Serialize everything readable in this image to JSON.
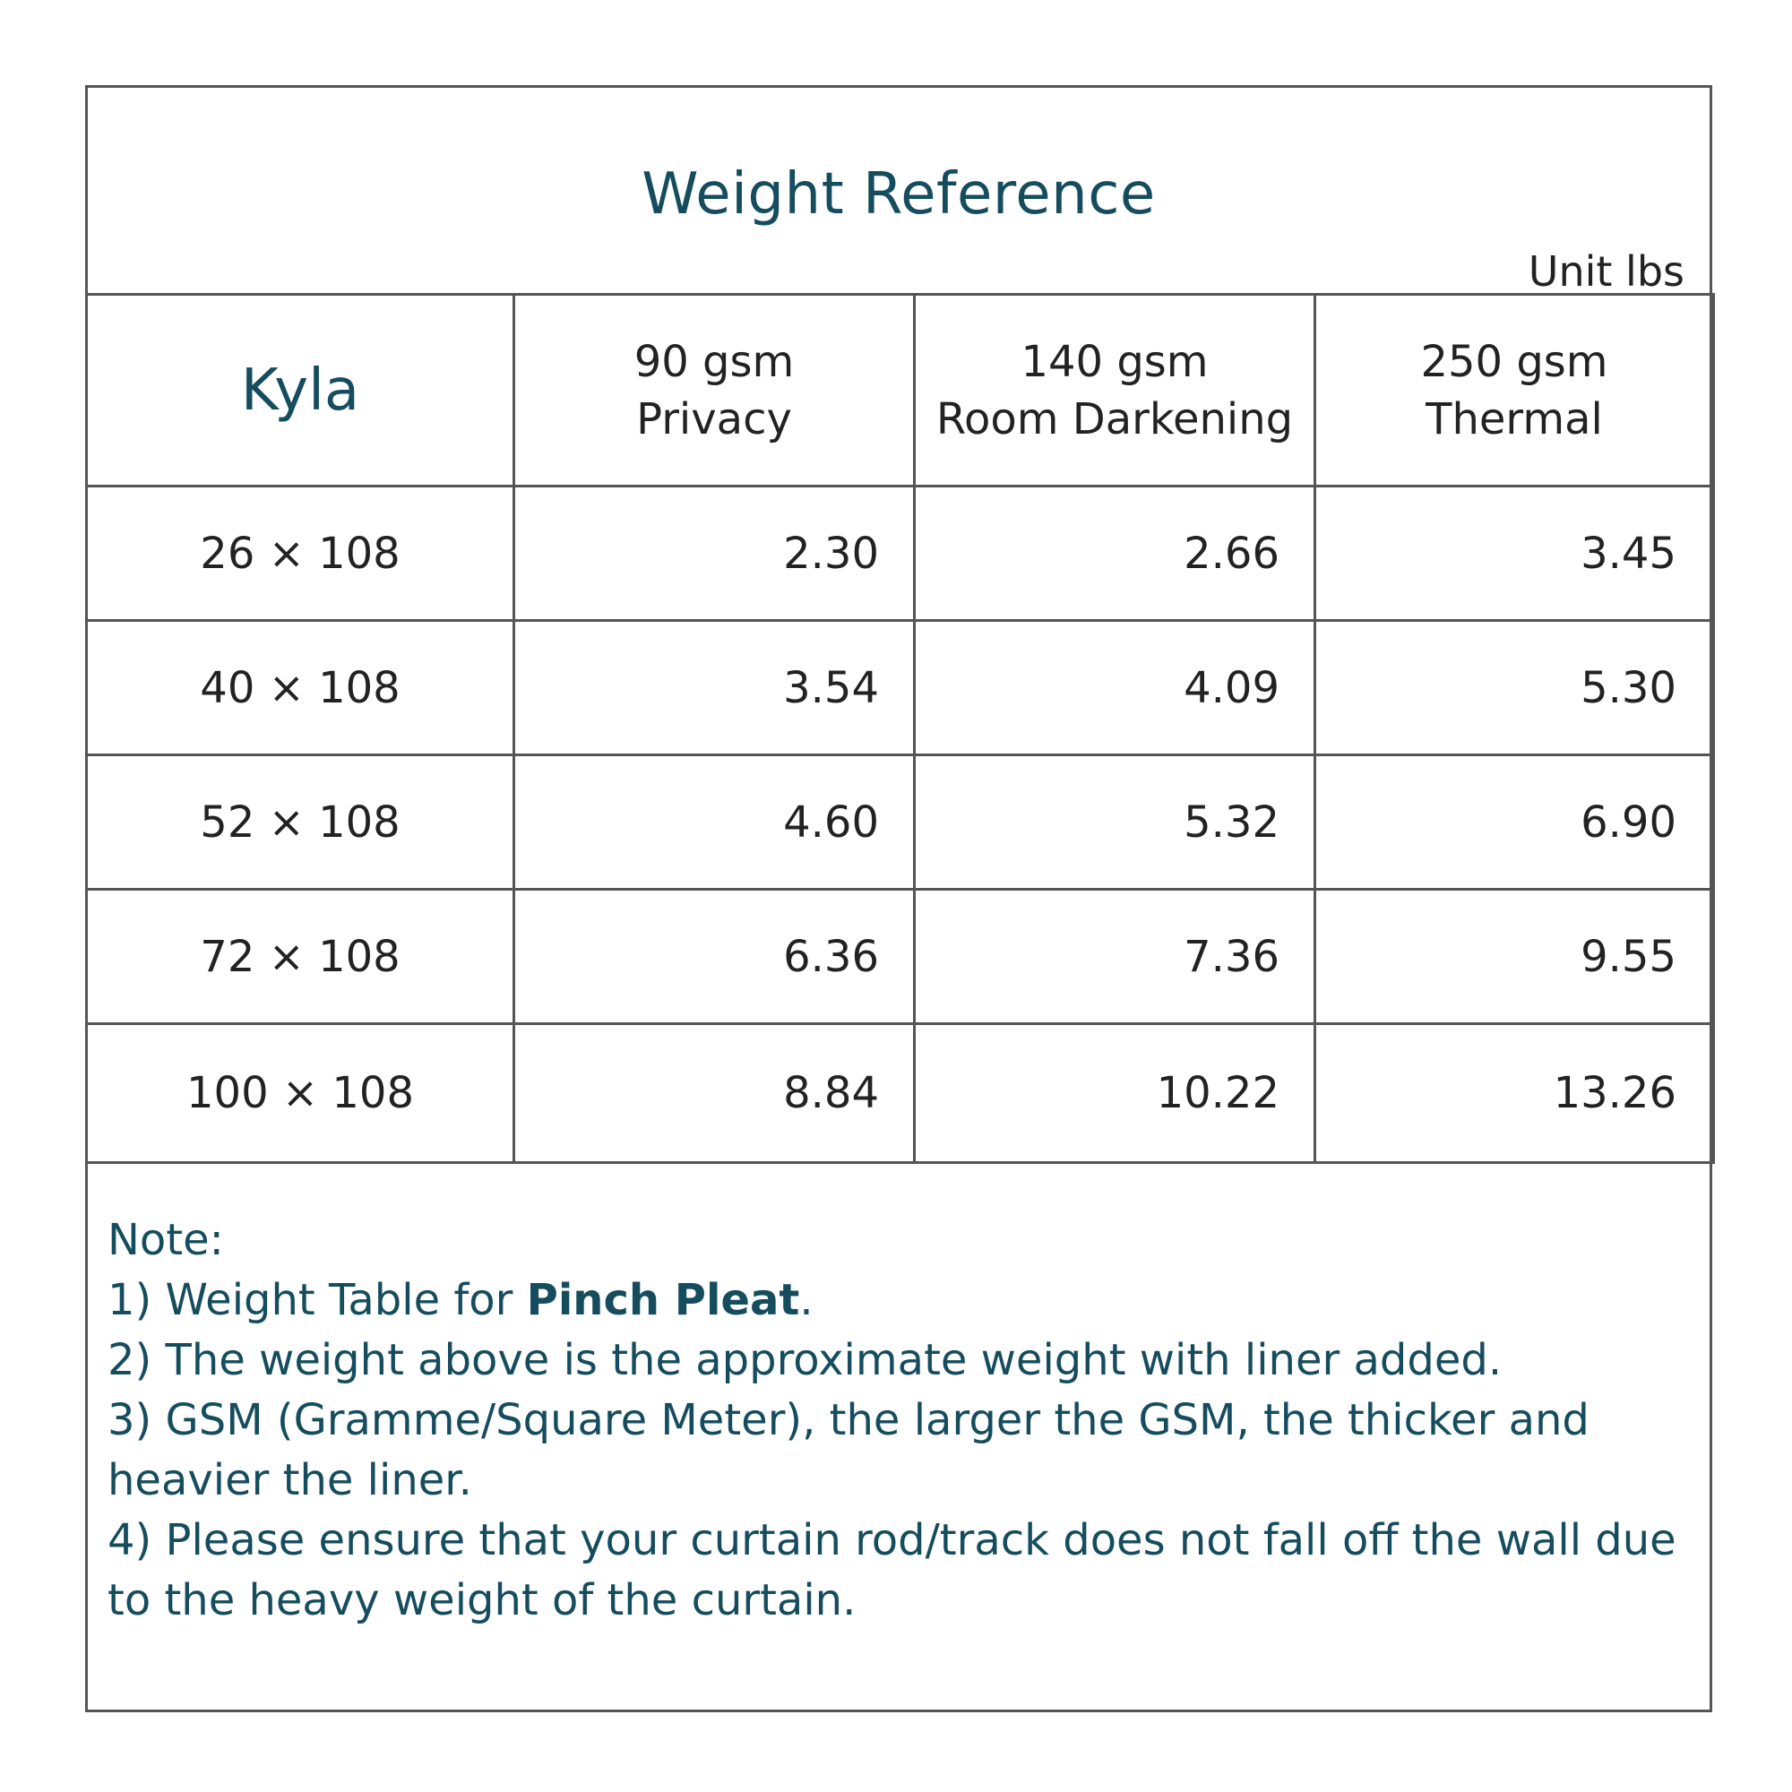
{
  "title": "Weight Reference",
  "unit": "Unit lbs",
  "table": {
    "product": "Kyla",
    "columns": [
      {
        "line1": "90 gsm",
        "line2": "Privacy"
      },
      {
        "line1": "140 gsm",
        "line2": "Room Darkening"
      },
      {
        "line1": "250 gsm",
        "line2": "Thermal"
      }
    ],
    "rows": [
      {
        "size": "26 × 108",
        "values": [
          "2.30",
          "2.66",
          "3.45"
        ]
      },
      {
        "size": "40 × 108",
        "values": [
          "3.54",
          "4.09",
          "5.30"
        ]
      },
      {
        "size": "52 × 108",
        "values": [
          "4.60",
          "5.32",
          "6.90"
        ]
      },
      {
        "size": "72 × 108",
        "values": [
          "6.36",
          "7.36",
          "9.55"
        ]
      },
      {
        "size": "100 × 108",
        "values": [
          "8.84",
          "10.22",
          "13.26"
        ]
      }
    ]
  },
  "notes": {
    "heading": "Note:",
    "item1_prefix": "1) Weight Table for ",
    "item1_bold": "Pinch Pleat",
    "item1_suffix": ".",
    "item2": "2) The weight above is the approximate weight with liner added.",
    "item3": "3) GSM (Gramme/Square Meter), the larger the GSM, the thicker and heavier the liner.",
    "item4": "4) Please ensure that your curtain rod/track does not fall off the wall due to the heavy weight of the curtain."
  }
}
